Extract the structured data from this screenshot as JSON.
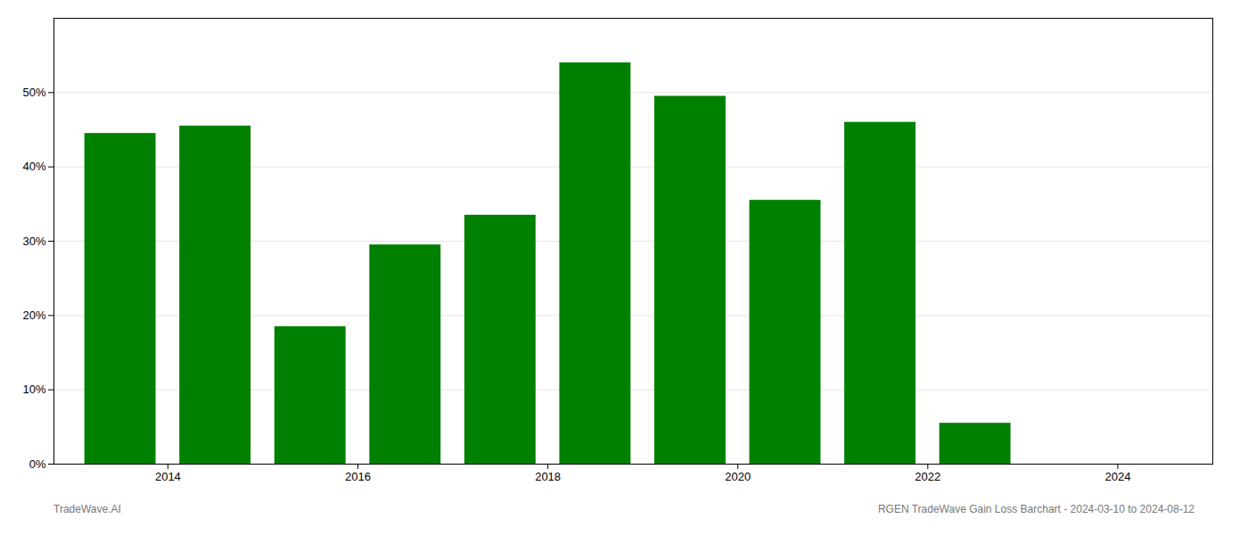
{
  "chart_data": {
    "type": "bar",
    "x": [
      2013,
      2014,
      2015,
      2016,
      2017,
      2018,
      2019,
      2020,
      2021,
      2022,
      2023
    ],
    "values": [
      44.5,
      45.5,
      18.5,
      29.5,
      33.5,
      54.0,
      49.5,
      35.5,
      46.0,
      5.5,
      0.0
    ],
    "color": "#008000",
    "xlim": [
      2012.3,
      2024.5
    ],
    "xticks": [
      {
        "value": 2013.5,
        "label": "2014"
      },
      {
        "value": 2015.5,
        "label": "2016"
      },
      {
        "value": 2017.5,
        "label": "2018"
      },
      {
        "value": 2019.5,
        "label": "2020"
      },
      {
        "value": 2021.5,
        "label": "2022"
      },
      {
        "value": 2023.5,
        "label": "2024"
      }
    ],
    "ylim": [
      0,
      60
    ],
    "yticks": [
      {
        "value": 0,
        "label": "0%"
      },
      {
        "value": 10,
        "label": "10%"
      },
      {
        "value": 20,
        "label": "20%"
      },
      {
        "value": 30,
        "label": "30%"
      },
      {
        "value": 40,
        "label": "40%"
      },
      {
        "value": 50,
        "label": "50%"
      }
    ],
    "grid": true,
    "annotations": [
      "TradeWave.AI",
      "RGEN TradeWave Gain Loss Barchart - 2024-03-10 to 2024-08-12"
    ]
  }
}
